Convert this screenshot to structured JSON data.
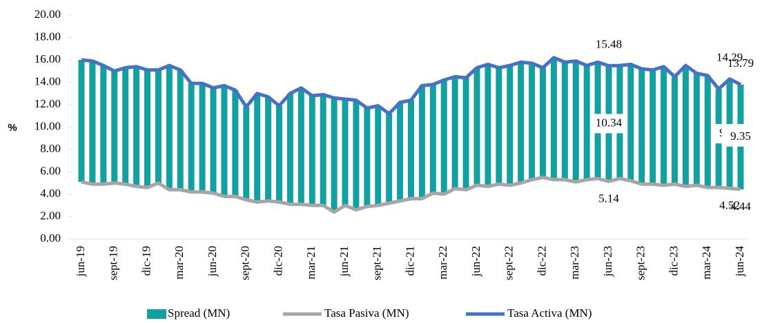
{
  "chart_data": {
    "type": "bar_line",
    "y_axis_label": "%",
    "categories": [
      "jun-19",
      null,
      null,
      "sept-19",
      null,
      null,
      "dic-19",
      null,
      null,
      "mar-20",
      null,
      null,
      "jun-20",
      null,
      null,
      "sept-20",
      null,
      null,
      "dic-20",
      null,
      null,
      "mar-21",
      null,
      null,
      "jun-21",
      null,
      null,
      "sept-21",
      null,
      null,
      "dic-21",
      null,
      null,
      "mar-22",
      null,
      null,
      "jun-22",
      null,
      null,
      "sept-22",
      null,
      null,
      "dic-22",
      null,
      null,
      "mar-23",
      null,
      null,
      "jun-23",
      null,
      null,
      "sept-23",
      null,
      null,
      "dic-23",
      null,
      null,
      "mar-24",
      null,
      null,
      "jun-24"
    ],
    "series": [
      {
        "name": "Spread (MN)",
        "type": "bar",
        "stacked_on": 1,
        "color": "#13a0a0",
        "values": [
          10.9,
          11.0,
          10.6,
          10.0,
          10.4,
          10.7,
          10.5,
          10.1,
          11.1,
          10.7,
          9.7,
          9.7,
          9.4,
          9.9,
          9.5,
          8.3,
          9.7,
          9.3,
          8.6,
          9.9,
          10.4,
          9.8,
          9.9,
          10.2,
          9.5,
          9.8,
          8.8,
          8.9,
          8.0,
          8.8,
          8.8,
          10.1,
          9.7,
          10.2,
          10.0,
          10.0,
          10.5,
          10.9,
          10.4,
          10.7,
          10.8,
          10.4,
          9.8,
          10.9,
          10.5,
          10.8,
          10.2,
          10.4,
          10.34,
          10.1,
          10.4,
          10.3,
          10.2,
          10.6,
          9.6,
          10.8,
          10.0,
          10.0,
          8.8,
          9.77,
          9.35
        ],
        "value_labels": [
          null,
          null,
          null,
          null,
          null,
          null,
          null,
          null,
          null,
          null,
          null,
          null,
          null,
          null,
          null,
          null,
          null,
          null,
          null,
          null,
          null,
          null,
          null,
          null,
          null,
          null,
          null,
          null,
          null,
          null,
          null,
          null,
          null,
          null,
          null,
          null,
          null,
          null,
          null,
          null,
          null,
          null,
          null,
          null,
          null,
          null,
          null,
          null,
          "10.34",
          null,
          null,
          null,
          null,
          null,
          null,
          null,
          null,
          null,
          null,
          "9.77",
          "9.35"
        ]
      },
      {
        "name": "Tasa Pasiva (MN)",
        "type": "line",
        "color": "#a6a6a6",
        "values": [
          5.1,
          4.9,
          4.9,
          5.0,
          4.9,
          4.7,
          4.6,
          5.0,
          4.4,
          4.4,
          4.2,
          4.2,
          4.1,
          3.8,
          3.8,
          3.5,
          3.3,
          3.4,
          3.3,
          3.1,
          3.1,
          3.0,
          3.0,
          2.4,
          3.0,
          2.6,
          2.9,
          3.0,
          3.2,
          3.4,
          3.6,
          3.6,
          4.1,
          4.0,
          4.5,
          4.4,
          4.8,
          4.7,
          4.9,
          4.8,
          5.0,
          5.3,
          5.5,
          5.3,
          5.3,
          5.1,
          5.3,
          5.4,
          5.14,
          5.4,
          5.2,
          4.9,
          4.9,
          4.8,
          4.9,
          4.7,
          4.8,
          4.6,
          4.6,
          4.52,
          4.44
        ],
        "value_labels": [
          null,
          null,
          null,
          null,
          null,
          null,
          null,
          null,
          null,
          null,
          null,
          null,
          null,
          null,
          null,
          null,
          null,
          null,
          null,
          null,
          null,
          null,
          null,
          null,
          null,
          null,
          null,
          null,
          null,
          null,
          null,
          null,
          null,
          null,
          null,
          null,
          null,
          null,
          null,
          null,
          null,
          null,
          null,
          null,
          null,
          null,
          null,
          null,
          "5.14",
          null,
          null,
          null,
          null,
          null,
          null,
          null,
          null,
          null,
          null,
          "4.52",
          "4.44"
        ]
      },
      {
        "name": "Tasa Activa (MN)",
        "type": "line",
        "color": "#4472c4",
        "values": [
          16.0,
          15.9,
          15.5,
          15.0,
          15.3,
          15.4,
          15.1,
          15.1,
          15.5,
          15.1,
          13.9,
          13.9,
          13.5,
          13.7,
          13.3,
          11.8,
          13.0,
          12.7,
          11.9,
          13.0,
          13.5,
          12.8,
          12.9,
          12.6,
          12.5,
          12.4,
          11.7,
          11.9,
          11.2,
          12.2,
          12.4,
          13.7,
          13.8,
          14.2,
          14.5,
          14.4,
          15.3,
          15.6,
          15.3,
          15.5,
          15.8,
          15.7,
          15.3,
          16.2,
          15.8,
          15.9,
          15.5,
          15.8,
          15.48,
          15.5,
          15.6,
          15.2,
          15.1,
          15.4,
          14.5,
          15.5,
          14.8,
          14.6,
          13.4,
          14.29,
          13.79
        ],
        "value_labels": [
          null,
          null,
          null,
          null,
          null,
          null,
          null,
          null,
          null,
          null,
          null,
          null,
          null,
          null,
          null,
          null,
          null,
          null,
          null,
          null,
          null,
          null,
          null,
          null,
          null,
          null,
          null,
          null,
          null,
          null,
          null,
          null,
          null,
          null,
          null,
          null,
          null,
          null,
          null,
          null,
          null,
          null,
          null,
          null,
          null,
          null,
          null,
          null,
          "15.48",
          null,
          null,
          null,
          null,
          null,
          null,
          null,
          null,
          null,
          null,
          "14.29",
          "13.79"
        ]
      }
    ],
    "ylim": [
      0,
      20
    ],
    "yticks": [
      {
        "value": 0,
        "label": "0.00"
      },
      {
        "value": 2,
        "label": "2.00"
      },
      {
        "value": 4,
        "label": "4.00"
      },
      {
        "value": 6,
        "label": "6.00"
      },
      {
        "value": 8,
        "label": "8.00"
      },
      {
        "value": 10,
        "label": "10.00"
      },
      {
        "value": 12,
        "label": "12.00"
      },
      {
        "value": 14,
        "label": "14.00"
      },
      {
        "value": 16,
        "label": "16.00"
      },
      {
        "value": 18,
        "label": "18.00"
      },
      {
        "value": 20,
        "label": "20.00"
      }
    ],
    "grid": false,
    "legend": "bottom"
  }
}
